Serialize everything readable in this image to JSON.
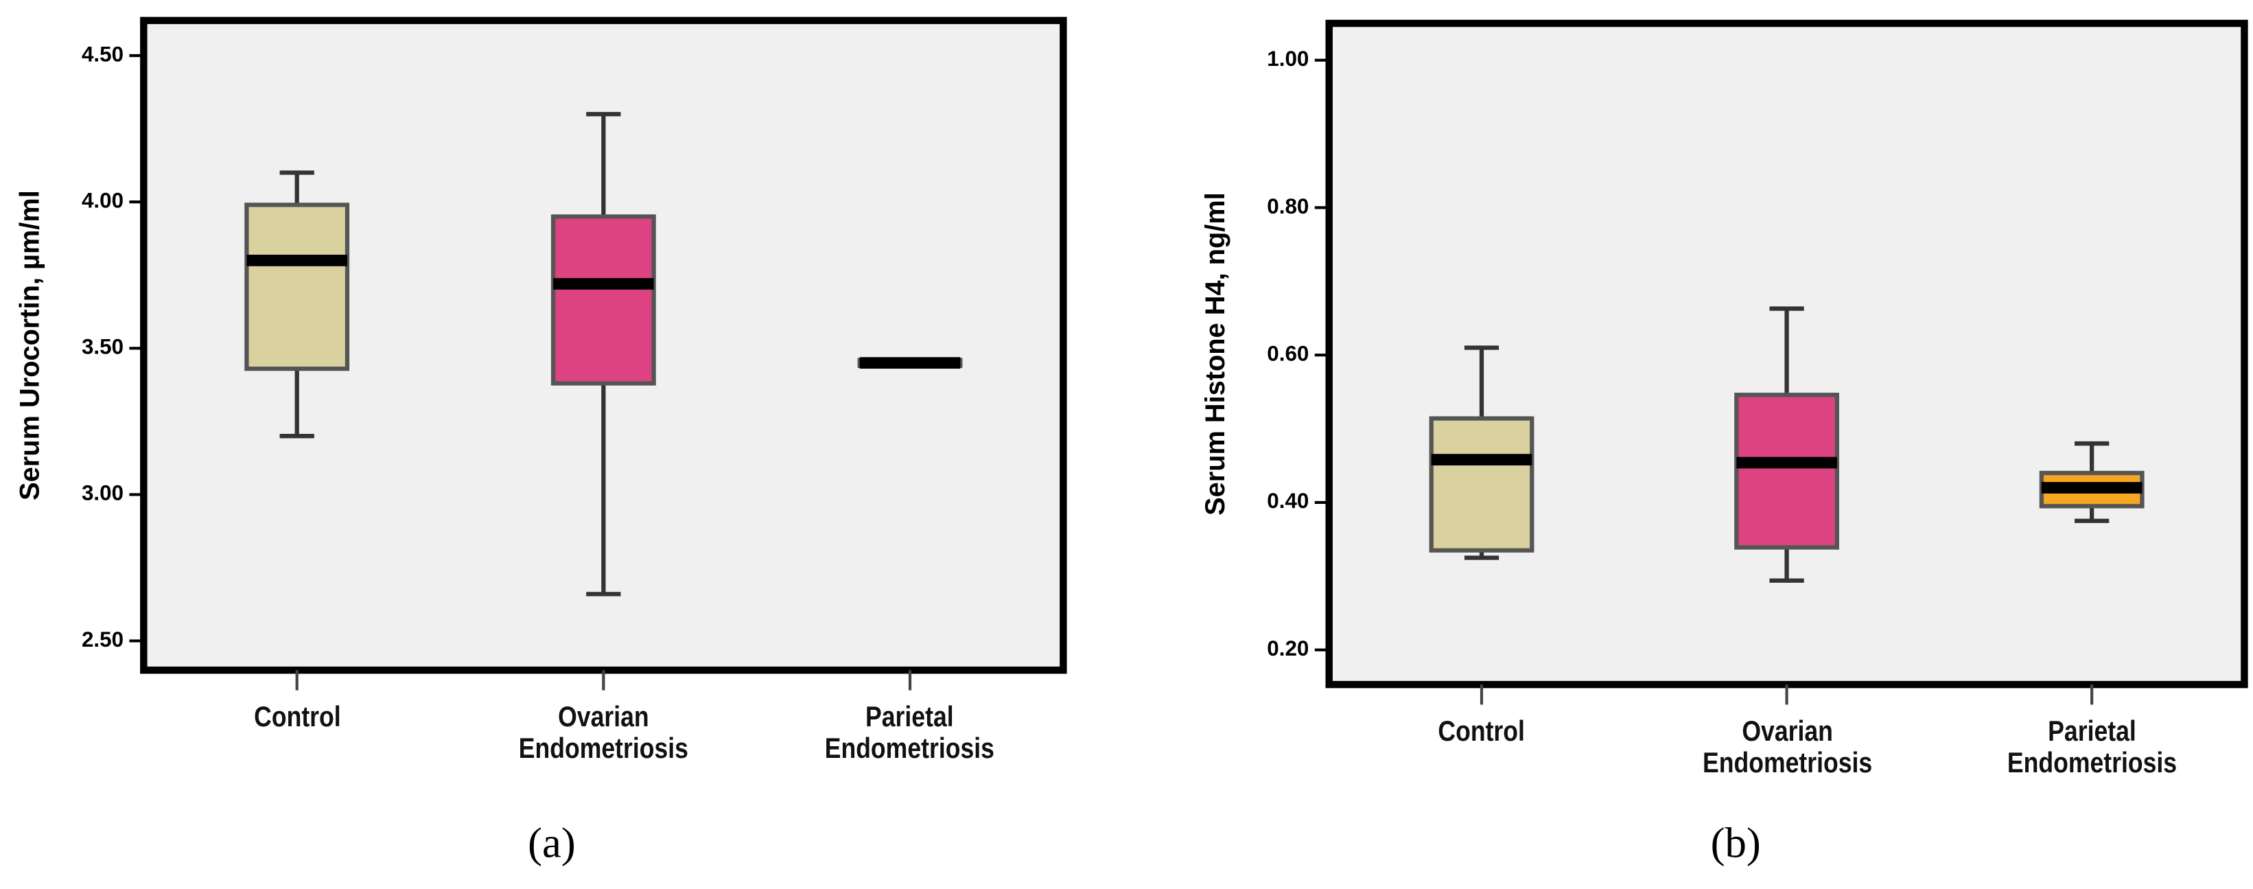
{
  "chart_data": [
    {
      "type": "box",
      "panel_label": "(a)",
      "y_label": "Serum Urocortin, µm/ml",
      "categories": [
        "Control",
        "Ovarian Endometriosis",
        "Parietal Endometriosis"
      ],
      "colors": [
        "#d9d1a0",
        "#dd4282",
        "#3a3a3a"
      ],
      "min": [
        3.2,
        2.66,
        3.44
      ],
      "q1": [
        3.43,
        3.38,
        3.44
      ],
      "median": [
        3.8,
        3.72,
        3.45
      ],
      "q3": [
        3.99,
        3.95,
        3.46
      ],
      "max": [
        4.1,
        4.3,
        3.46
      ],
      "ylim": [
        2.4,
        4.62
      ],
      "yticks": [
        {
          "value": 2.5,
          "label": "2.50"
        },
        {
          "value": 3.0,
          "label": "3.00"
        },
        {
          "value": 3.5,
          "label": "3.50"
        },
        {
          "value": 4.0,
          "label": "4.00"
        },
        {
          "value": 4.5,
          "label": "4.50"
        }
      ]
    },
    {
      "type": "box",
      "panel_label": "(b)",
      "y_label": "Serum Histone H4, ng/ml",
      "categories": [
        "Control",
        "Ovarian Endometriosis",
        "Parietal Endometriosis"
      ],
      "colors": [
        "#d9d1a0",
        "#dd4282",
        "#f5a623"
      ],
      "min": [
        0.325,
        0.294,
        0.375
      ],
      "q1": [
        0.335,
        0.339,
        0.395
      ],
      "median": [
        0.458,
        0.454,
        0.42
      ],
      "q3": [
        0.514,
        0.546,
        0.44
      ],
      "max": [
        0.61,
        0.663,
        0.48
      ],
      "ylim": [
        0.153,
        1.05
      ],
      "yticks": [
        {
          "value": 0.2,
          "label": "0.20"
        },
        {
          "value": 0.4,
          "label": "0.40"
        },
        {
          "value": 0.6,
          "label": "0.60"
        },
        {
          "value": 0.8,
          "label": "0.80"
        },
        {
          "value": 1.0,
          "label": "1.00"
        }
      ]
    }
  ]
}
